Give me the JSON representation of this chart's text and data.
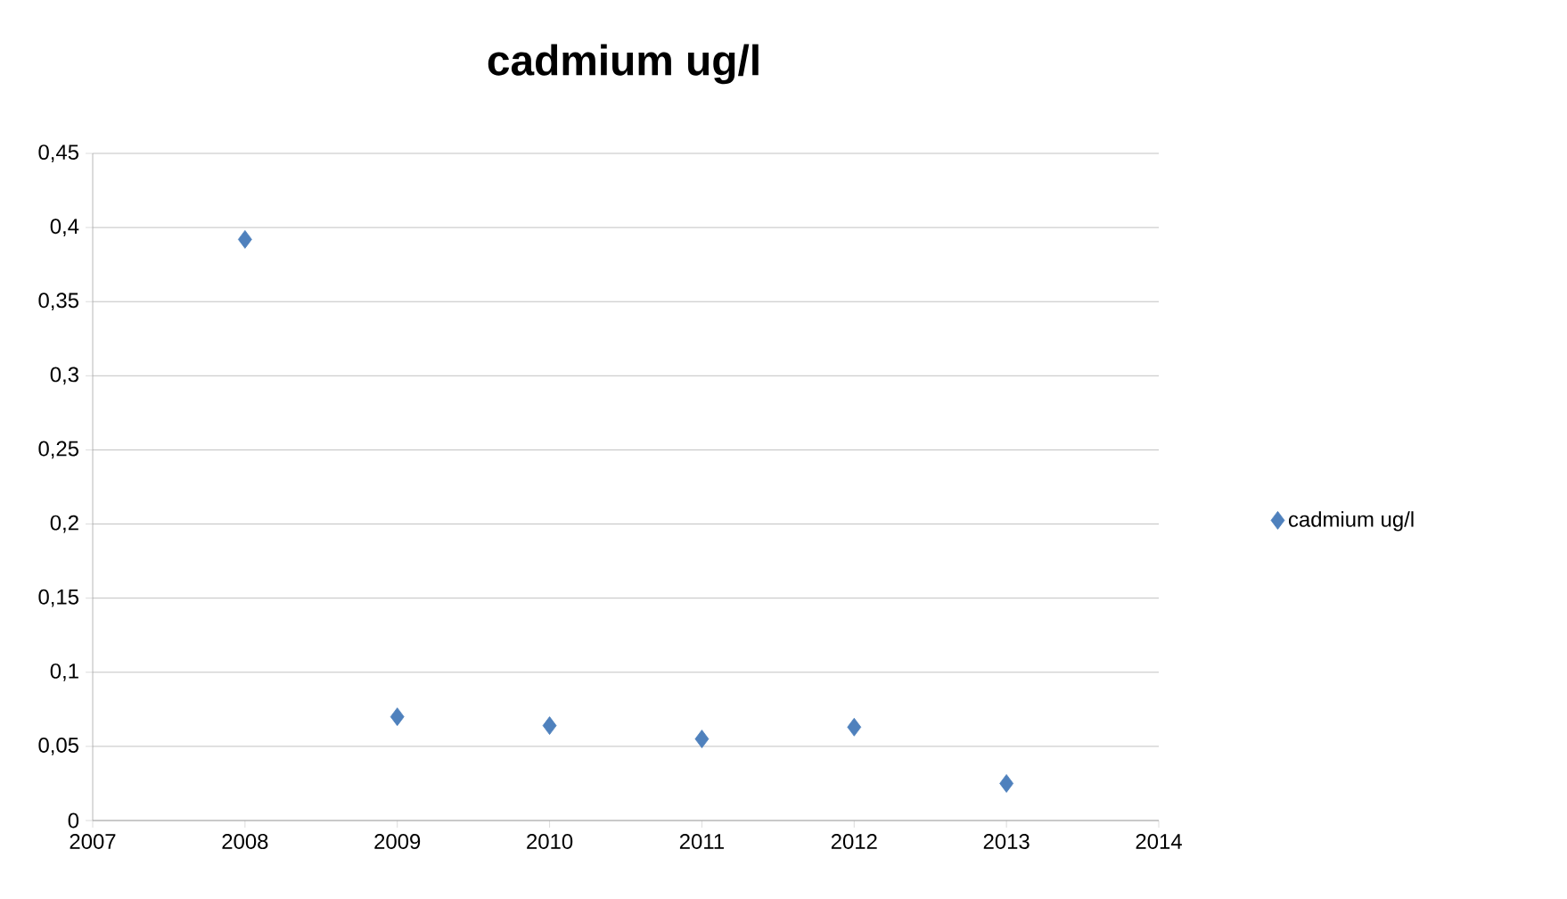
{
  "chart_data": {
    "type": "scatter",
    "title": "cadmium ug/l",
    "x": [
      2008,
      2009,
      2010,
      2011,
      2012,
      2013
    ],
    "series": [
      {
        "name": "cadmium ug/l",
        "color": "#4f81bd",
        "values": [
          0.392,
          0.07,
          0.064,
          0.055,
          0.063,
          0.025
        ]
      }
    ],
    "xlim": [
      2007,
      2014
    ],
    "xticks": [
      2007,
      2008,
      2009,
      2010,
      2011,
      2012,
      2013,
      2014
    ],
    "ylim": [
      0,
      0.45
    ],
    "yticks": [
      0,
      {
        "value": 0.05,
        "label": "0,05"
      },
      {
        "value": 0.1,
        "label": "0,1"
      },
      {
        "value": 0.15,
        "label": "0,15"
      },
      {
        "value": 0.2,
        "label": "0,2"
      },
      {
        "value": 0.25,
        "label": "0,25"
      },
      {
        "value": 0.3,
        "label": "0,3"
      },
      {
        "value": 0.35,
        "label": "0,35"
      },
      {
        "value": 0.4,
        "label": "0,4"
      },
      {
        "value": 0.45,
        "label": "0,45"
      }
    ],
    "grid": "y",
    "legend": "right",
    "marker": "diamond"
  }
}
